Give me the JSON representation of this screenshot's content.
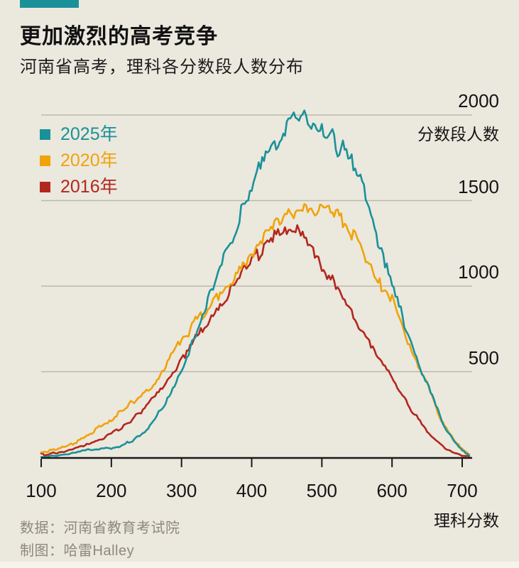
{
  "page": {
    "background": "#ebe8de"
  },
  "header": {
    "tag_color": "#1a9199",
    "title": "更加激烈的高考竞争",
    "subtitle": "河南省高考，理科各分数段人数分布"
  },
  "footer": {
    "source": "数据：河南省教育考试院",
    "credit": "制图：哈雷Halley"
  },
  "chart_data": {
    "type": "line",
    "title": "更加激烈的高考竞争",
    "subtitle": "河南省高考，理科各分数段人数分布",
    "xlabel": "理科分数",
    "ylabel": "分数段人数",
    "legend_position": "top-left",
    "grid": "horizontal",
    "xlim": [
      100,
      715
    ],
    "ylim": [
      0,
      2080
    ],
    "x_ticks": [
      100,
      200,
      300,
      400,
      500,
      600,
      700
    ],
    "y_ticks": [
      500,
      1000,
      1500,
      2000
    ],
    "x": [
      100,
      110,
      120,
      130,
      140,
      150,
      160,
      170,
      180,
      190,
      200,
      210,
      220,
      230,
      240,
      250,
      260,
      270,
      280,
      290,
      300,
      310,
      320,
      330,
      340,
      350,
      360,
      370,
      380,
      390,
      400,
      410,
      420,
      430,
      440,
      450,
      460,
      470,
      480,
      490,
      500,
      510,
      520,
      530,
      540,
      550,
      560,
      570,
      580,
      590,
      600,
      610,
      620,
      630,
      640,
      650,
      660,
      670,
      680,
      690,
      700,
      710
    ],
    "series": [
      {
        "name": "2025年",
        "color": "#1a9199",
        "values": [
          4,
          5,
          6,
          10,
          18,
          28,
          34,
          40,
          45,
          48,
          52,
          62,
          78,
          98,
          125,
          160,
          210,
          268,
          335,
          420,
          515,
          615,
          715,
          820,
          930,
          1045,
          1155,
          1265,
          1370,
          1470,
          1570,
          1660,
          1750,
          1830,
          1895,
          1935,
          1965,
          1985,
          1975,
          1950,
          1925,
          1880,
          1830,
          1795,
          1750,
          1670,
          1545,
          1415,
          1280,
          1145,
          1010,
          880,
          755,
          645,
          535,
          440,
          330,
          225,
          140,
          80,
          40,
          8
        ]
      },
      {
        "name": "2020年",
        "color": "#f0a30a",
        "values": [
          30,
          36,
          44,
          56,
          70,
          88,
          110,
          138,
          165,
          192,
          220,
          252,
          288,
          320,
          352,
          388,
          428,
          478,
          552,
          628,
          692,
          738,
          788,
          838,
          888,
          932,
          978,
          1028,
          1078,
          1128,
          1178,
          1235,
          1295,
          1348,
          1385,
          1415,
          1432,
          1445,
          1452,
          1445,
          1450,
          1440,
          1425,
          1385,
          1335,
          1285,
          1195,
          1105,
          1015,
          985,
          935,
          820,
          705,
          595,
          520,
          430,
          320,
          225,
          148,
          88,
          48,
          18
        ]
      },
      {
        "name": "2016年",
        "color": "#b2271d",
        "values": [
          14,
          17,
          22,
          30,
          40,
          54,
          68,
          86,
          102,
          118,
          134,
          158,
          188,
          222,
          262,
          302,
          348,
          398,
          452,
          508,
          565,
          632,
          695,
          758,
          818,
          875,
          928,
          985,
          1038,
          1088,
          1138,
          1188,
          1235,
          1275,
          1300,
          1318,
          1325,
          1295,
          1240,
          1165,
          1100,
          1048,
          1000,
          930,
          858,
          788,
          718,
          655,
          590,
          522,
          458,
          392,
          326,
          262,
          205,
          155,
          112,
          74,
          44,
          24,
          10,
          3
        ]
      }
    ],
    "style": {
      "grid_color": "#bcb8ab",
      "axis_color": "#1a1a1a",
      "line_width": 2.6,
      "noise_base": 3,
      "noise_scale": 0.018
    }
  }
}
